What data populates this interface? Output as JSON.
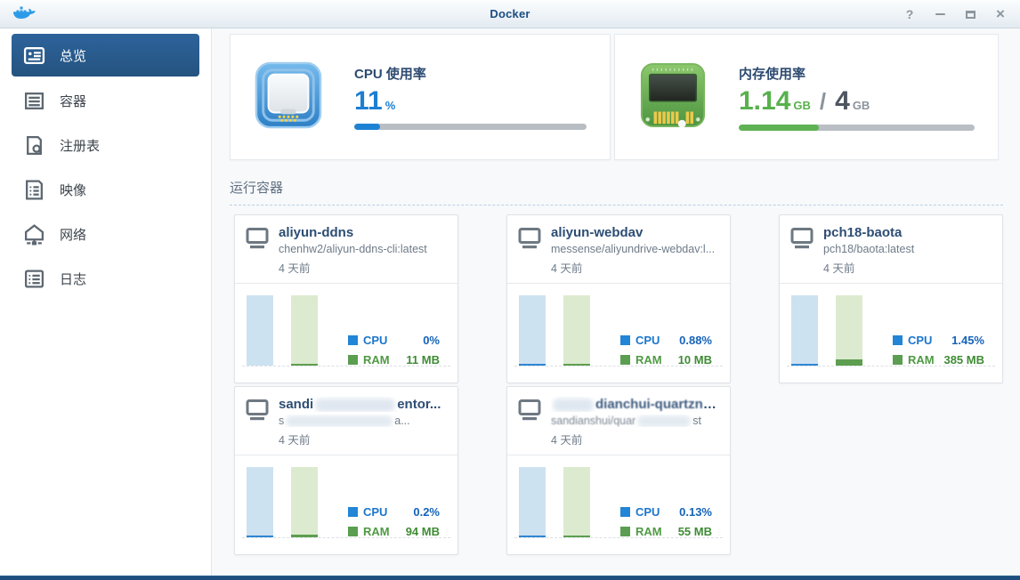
{
  "window": {
    "title": "Docker",
    "controls": {
      "help_label": "?",
      "close_label": "×"
    }
  },
  "sidebar": {
    "items": [
      {
        "label": "总览",
        "icon": "overview-icon",
        "selected": true
      },
      {
        "label": "容器",
        "icon": "containers-icon",
        "selected": false
      },
      {
        "label": "注册表",
        "icon": "registry-icon",
        "selected": false
      },
      {
        "label": "映像",
        "icon": "image-icon",
        "selected": false
      },
      {
        "label": "网络",
        "icon": "network-icon",
        "selected": false
      },
      {
        "label": "日志",
        "icon": "log-icon",
        "selected": false
      }
    ]
  },
  "summary": {
    "cpu": {
      "label": "CPU 使用率",
      "value": "11",
      "unit": "%",
      "percent": 11,
      "accent": "#1c7ed2"
    },
    "memory": {
      "label": "内存使用率",
      "used": "1.14",
      "used_unit": "GB",
      "separator": "/",
      "total": "4",
      "total_unit": "GB",
      "percent": 34,
      "accent": "#58b14c"
    }
  },
  "running": {
    "title": "运行容器",
    "containers": [
      {
        "name": "aliyun-ddns",
        "image": "chenhw2/aliyun-ddns-cli:latest",
        "age": "4 天前",
        "cpu_label": "CPU",
        "cpu_value": "0%",
        "ram_label": "RAM",
        "ram_value": "11 MB",
        "cpu_bar_pct": 0,
        "ram_bar_pct": 2
      },
      {
        "name": "aliyun-webdav",
        "image": "messense/aliyundrive-webdav:l...",
        "age": "4 天前",
        "cpu_label": "CPU",
        "cpu_value": "0.88%",
        "ram_label": "RAM",
        "ram_value": "10 MB",
        "cpu_bar_pct": 2,
        "ram_bar_pct": 2
      },
      {
        "name": "pch18-baota",
        "image": "pch18/baota:latest",
        "age": "4 天前",
        "cpu_label": "CPU",
        "cpu_value": "1.45%",
        "ram_label": "RAM",
        "ram_value": "385 MB",
        "cpu_bar_pct": 1.5,
        "ram_bar_pct": 9.5
      },
      {
        "redacted": true,
        "name_start": "sandi",
        "name_end": "entor...",
        "image_start": "s",
        "image_end": "a...",
        "age": "4 天前",
        "cpu_label": "CPU",
        "cpu_value": "0.2%",
        "ram_label": "RAM",
        "ram_value": "94 MB",
        "cpu_bar_pct": 1.5,
        "ram_bar_pct": 4
      },
      {
        "redacted": true,
        "name_end": "dianchui-quartzno ..",
        "image_start": "sandianshui/quar",
        "image_end": "st",
        "age": "4 天前",
        "cpu_label": "CPU",
        "cpu_value": "0.13%",
        "ram_label": "RAM",
        "ram_value": "55 MB",
        "cpu_bar_pct": 1.5,
        "ram_bar_pct": 3
      }
    ]
  }
}
